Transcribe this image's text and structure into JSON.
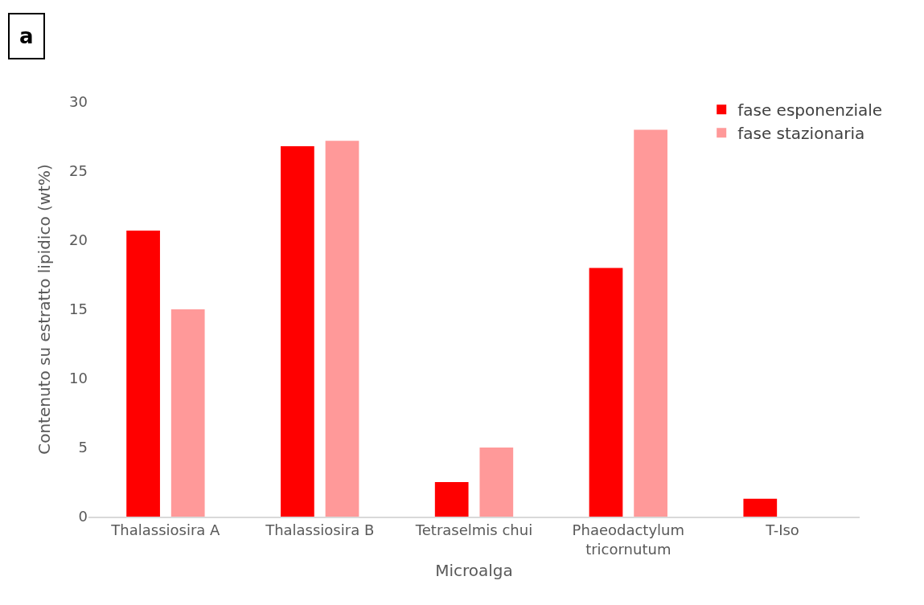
{
  "chart_data": {
    "type": "bar",
    "xlabel": "Microalga",
    "ylabel": "Contenuto su estratto lipidico (wt%)",
    "annotations": [
      "a"
    ],
    "categories": [
      "Thalassiosira A",
      "Thalassiosira B",
      "Tetraselmis chui",
      "Phaeodactylum tricornutum",
      "T-Iso"
    ],
    "series": [
      {
        "name": "fase esponenziale",
        "color": "#ff0000",
        "values": [
          20.7,
          26.8,
          2.5,
          18.0,
          1.3
        ]
      },
      {
        "name": "fase stazionaria",
        "color": "#ff9999",
        "values": [
          15.0,
          27.2,
          5.0,
          28.0,
          null
        ]
      }
    ],
    "ylim": [
      0,
      30
    ],
    "yticks": [
      0,
      5,
      10,
      15,
      20,
      25,
      30
    ],
    "grid": false,
    "legend": "top right"
  }
}
